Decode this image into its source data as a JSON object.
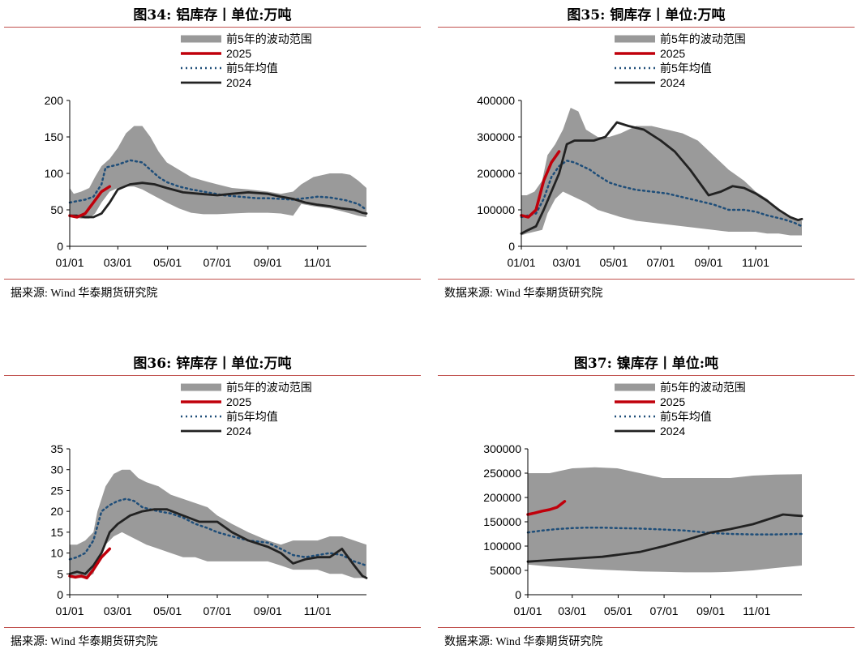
{
  "page": {
    "source_prefix": "数据来源:"
  },
  "chart_data": [
    {
      "type": "line",
      "title": "图34:   铝库存丨单位:万吨",
      "source": "据来源:  Wind  华泰期货研究院",
      "ylim": [
        0,
        200
      ],
      "yticks": [
        0,
        50,
        100,
        150,
        200
      ],
      "xlim": [
        1,
        365
      ],
      "x_tick_positions": [
        1,
        60,
        121,
        182,
        244,
        305
      ],
      "x_tick_labels": [
        "01/01",
        "03/01",
        "05/01",
        "07/01",
        "09/01",
        "11/01"
      ],
      "legend": [
        "前5年的波动范围",
        "2025",
        "前5年均值",
        "2024"
      ],
      "band": {
        "x": [
          1,
          6,
          15,
          25,
          32,
          40,
          50,
          60,
          70,
          80,
          90,
          100,
          110,
          120,
          135,
          150,
          165,
          182,
          200,
          220,
          244,
          260,
          275,
          285,
          300,
          320,
          335,
          345,
          355,
          365
        ],
        "low": [
          42,
          40,
          38,
          38,
          45,
          60,
          75,
          80,
          82,
          82,
          78,
          72,
          66,
          60,
          52,
          46,
          44,
          44,
          45,
          46,
          46,
          45,
          42,
          58,
          55,
          52,
          48,
          45,
          42,
          40
        ],
        "high": [
          80,
          72,
          75,
          80,
          95,
          110,
          120,
          135,
          155,
          165,
          165,
          150,
          130,
          115,
          105,
          95,
          90,
          85,
          80,
          78,
          75,
          72,
          75,
          85,
          95,
          100,
          100,
          98,
          90,
          80
        ]
      },
      "series": [
        {
          "name": "2025",
          "x": [
            1,
            10,
            20,
            30,
            40,
            50
          ],
          "values": [
            42,
            40,
            45,
            60,
            75,
            82
          ]
        },
        {
          "name": "前5年均值",
          "x": [
            1,
            10,
            20,
            30,
            40,
            45,
            60,
            75,
            90,
            100,
            110,
            120,
            135,
            150,
            170,
            190,
            210,
            230,
            244,
            260,
            275,
            290,
            305,
            320,
            340,
            355,
            365
          ],
          "values": [
            60,
            62,
            64,
            68,
            85,
            108,
            112,
            118,
            115,
            105,
            95,
            88,
            82,
            78,
            74,
            70,
            68,
            66,
            66,
            65,
            64,
            66,
            68,
            67,
            63,
            58,
            50
          ]
        },
        {
          "name": "2024",
          "x": [
            1,
            10,
            20,
            30,
            40,
            50,
            60,
            75,
            90,
            105,
            120,
            140,
            160,
            182,
            200,
            220,
            244,
            260,
            275,
            290,
            305,
            320,
            335,
            350,
            360,
            365
          ],
          "values": [
            42,
            42,
            40,
            40,
            45,
            60,
            78,
            85,
            87,
            85,
            80,
            74,
            72,
            70,
            72,
            74,
            72,
            68,
            65,
            60,
            57,
            55,
            52,
            50,
            46,
            45
          ]
        }
      ]
    },
    {
      "type": "line",
      "title": "图35:   铜库存丨单位:万吨",
      "source": "数据来源:  Wind  华泰期货研究院",
      "ylim": [
        0,
        400000
      ],
      "yticks": [
        0,
        100000,
        200000,
        300000,
        400000
      ],
      "xlim": [
        1,
        365
      ],
      "x_tick_positions": [
        1,
        60,
        121,
        182,
        244,
        305
      ],
      "x_tick_labels": [
        "01/01",
        "03/01",
        "05/01",
        "07/01",
        "09/01",
        "11/01"
      ],
      "legend": [
        "前5年的波动范围",
        "2025",
        "前5年均值",
        "2024"
      ],
      "band": {
        "x": [
          1,
          8,
          18,
          28,
          35,
          45,
          55,
          65,
          75,
          85,
          100,
          115,
          130,
          150,
          170,
          190,
          210,
          230,
          250,
          270,
          290,
          305,
          320,
          335,
          350,
          365
        ],
        "low": [
          30000,
          35000,
          40000,
          45000,
          90000,
          130000,
          150000,
          140000,
          130000,
          120000,
          100000,
          90000,
          80000,
          70000,
          65000,
          60000,
          55000,
          50000,
          45000,
          40000,
          40000,
          40000,
          35000,
          35000,
          30000,
          30000
        ],
        "high": [
          140000,
          140000,
          150000,
          180000,
          250000,
          280000,
          320000,
          380000,
          370000,
          320000,
          300000,
          300000,
          310000,
          330000,
          330000,
          320000,
          310000,
          290000,
          250000,
          210000,
          180000,
          150000,
          130000,
          100000,
          80000,
          70000
        ]
      },
      "series": [
        {
          "name": "2025",
          "x": [
            1,
            10,
            20,
            30,
            40,
            50
          ],
          "values": [
            85000,
            80000,
            100000,
            180000,
            230000,
            260000
          ]
        },
        {
          "name": "前5年均值",
          "x": [
            1,
            10,
            20,
            30,
            40,
            50,
            60,
            70,
            80,
            90,
            100,
            115,
            130,
            150,
            170,
            190,
            210,
            230,
            250,
            270,
            290,
            305,
            320,
            340,
            355,
            365
          ],
          "values": [
            80000,
            85000,
            90000,
            130000,
            190000,
            220000,
            235000,
            230000,
            220000,
            210000,
            195000,
            175000,
            165000,
            155000,
            150000,
            145000,
            135000,
            125000,
            115000,
            100000,
            100000,
            95000,
            85000,
            75000,
            65000,
            55000
          ]
        },
        {
          "name": "2024",
          "x": [
            1,
            10,
            20,
            30,
            40,
            50,
            60,
            70,
            80,
            95,
            110,
            125,
            140,
            160,
            182,
            200,
            220,
            244,
            260,
            275,
            290,
            305,
            320,
            335,
            350,
            360,
            365
          ],
          "values": [
            35000,
            45000,
            55000,
            100000,
            150000,
            200000,
            280000,
            290000,
            290000,
            290000,
            300000,
            340000,
            330000,
            320000,
            290000,
            260000,
            210000,
            140000,
            150000,
            165000,
            160000,
            145000,
            125000,
            100000,
            80000,
            72000,
            75000
          ]
        }
      ]
    },
    {
      "type": "line",
      "title": "图36:   锌库存丨单位:万吨",
      "source": "据来源:  Wind  华泰期货研究院",
      "ylim": [
        0,
        35
      ],
      "yticks": [
        0,
        5,
        10,
        15,
        20,
        25,
        30,
        35
      ],
      "xlim": [
        1,
        365
      ],
      "x_tick_positions": [
        1,
        60,
        121,
        182,
        244,
        305
      ],
      "x_tick_labels": [
        "01/01",
        "03/01",
        "05/01",
        "07/01",
        "09/01",
        "11/01"
      ],
      "legend": [
        "前5年的波动范围",
        "2025",
        "前5年均值",
        "2024"
      ],
      "band": {
        "x": [
          1,
          10,
          20,
          30,
          35,
          45,
          55,
          65,
          75,
          85,
          95,
          110,
          125,
          140,
          155,
          170,
          182,
          200,
          220,
          244,
          260,
          275,
          290,
          305,
          320,
          335,
          350,
          365
        ],
        "low": [
          4,
          4,
          4,
          5,
          8,
          12,
          14,
          15,
          14,
          13,
          12,
          11,
          10,
          9,
          9,
          8,
          8,
          8,
          8,
          8,
          7,
          6,
          6,
          6,
          5,
          5,
          4,
          4
        ],
        "high": [
          12,
          12,
          13,
          15,
          20,
          26,
          29,
          30,
          30,
          28,
          27,
          26,
          24,
          23,
          22,
          21,
          19,
          17,
          15,
          13,
          12,
          13,
          13,
          13,
          14,
          14,
          13,
          12
        ]
      },
      "series": [
        {
          "name": "2025",
          "x": [
            1,
            8,
            15,
            22,
            30,
            40,
            50
          ],
          "values": [
            4.5,
            4.2,
            4.5,
            4.0,
            6,
            9,
            11
          ]
        },
        {
          "name": "前5年均值",
          "x": [
            1,
            10,
            20,
            30,
            40,
            50,
            60,
            70,
            80,
            90,
            100,
            110,
            125,
            140,
            155,
            170,
            182,
            200,
            220,
            244,
            260,
            275,
            290,
            305,
            320,
            335,
            350,
            365
          ],
          "values": [
            8.5,
            9,
            10,
            13,
            20,
            21.5,
            22.5,
            23,
            22.5,
            21,
            20.5,
            20,
            19.5,
            18.5,
            17,
            16,
            15,
            14,
            13,
            12.5,
            11,
            9.5,
            9,
            9.5,
            10,
            9.5,
            8,
            7
          ]
        },
        {
          "name": "2024",
          "x": [
            1,
            10,
            20,
            30,
            40,
            50,
            60,
            75,
            90,
            105,
            120,
            140,
            160,
            182,
            200,
            220,
            244,
            260,
            275,
            290,
            305,
            320,
            335,
            350,
            360,
            365
          ],
          "values": [
            5,
            5.5,
            5,
            7,
            10,
            15,
            17,
            19,
            20,
            20.5,
            20.5,
            19,
            17.5,
            17.5,
            15,
            13,
            11.5,
            10,
            7.5,
            8.5,
            9,
            9,
            11,
            7,
            4.5,
            4
          ]
        }
      ]
    },
    {
      "type": "line",
      "title": "图37:   镍库存丨单位:吨",
      "source": "数据来源:  Wind  华泰期货研究院",
      "ylim": [
        0,
        300000
      ],
      "yticks": [
        0,
        50000,
        100000,
        150000,
        200000,
        250000,
        300000
      ],
      "xlim": [
        1,
        365
      ],
      "x_tick_positions": [
        1,
        60,
        121,
        182,
        244,
        305
      ],
      "x_tick_labels": [
        "01/01",
        "03/01",
        "05/01",
        "07/01",
        "09/01",
        "11/01"
      ],
      "legend": [
        "前5年的波动范围",
        "2025",
        "前5年均值",
        "2024"
      ],
      "band": {
        "x": [
          1,
          30,
          60,
          90,
          120,
          150,
          180,
          210,
          244,
          270,
          300,
          330,
          365
        ],
        "low": [
          62000,
          58000,
          55000,
          52000,
          50000,
          48000,
          47000,
          46000,
          46000,
          47000,
          50000,
          55000,
          60000
        ],
        "high": [
          250000,
          250000,
          260000,
          262000,
          260000,
          250000,
          240000,
          240000,
          240000,
          240000,
          245000,
          247000,
          248000
        ]
      },
      "series": [
        {
          "name": "2025",
          "x": [
            1,
            10,
            20,
            30,
            40,
            50
          ],
          "values": [
            165000,
            168000,
            172000,
            175000,
            180000,
            192000
          ]
        },
        {
          "name": "前5年均值",
          "x": [
            1,
            20,
            40,
            60,
            80,
            100,
            120,
            150,
            182,
            210,
            244,
            270,
            300,
            330,
            360,
            365
          ],
          "values": [
            128000,
            132000,
            135000,
            137000,
            138000,
            138000,
            137000,
            136000,
            134000,
            132000,
            127000,
            125000,
            124000,
            124000,
            125000,
            125000
          ]
        },
        {
          "name": "2024",
          "x": [
            1,
            20,
            40,
            60,
            80,
            100,
            120,
            150,
            182,
            210,
            244,
            270,
            300,
            320,
            340,
            355,
            365
          ],
          "values": [
            68000,
            70000,
            72000,
            74000,
            76000,
            78000,
            82000,
            88000,
            100000,
            112000,
            128000,
            135000,
            145000,
            155000,
            165000,
            163000,
            162000
          ]
        }
      ]
    }
  ]
}
